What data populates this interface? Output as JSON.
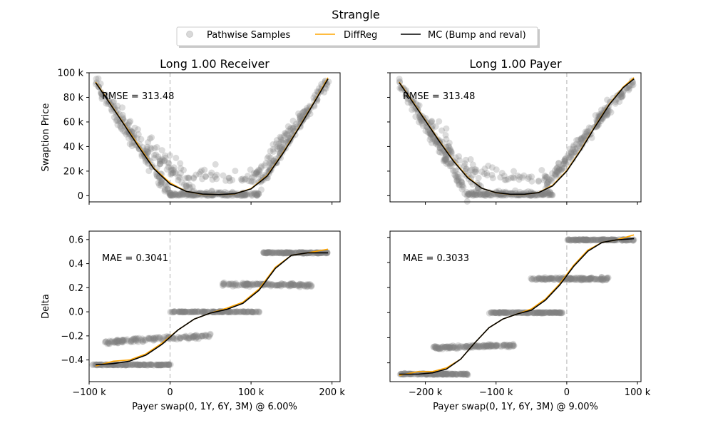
{
  "chart_data": {
    "type": "scatter",
    "title": "Strangle",
    "legend": {
      "placement": "top-center",
      "entries": [
        {
          "name": "Pathwise Samples",
          "kind": "scatter",
          "color": "#808080"
        },
        {
          "name": "DiffReg",
          "kind": "line",
          "color": "#FFA500"
        },
        {
          "name": "MC (Bump and reval)",
          "kind": "line",
          "color": "#000000"
        }
      ]
    },
    "colors": {
      "samples": "#808080",
      "diffreg": "#FFA500",
      "mc": "#000000",
      "strike_line": "#cccccc"
    },
    "panels": [
      {
        "id": "price-receiver",
        "title": "Long 1.00 Receiver",
        "ylabel": "Swaption Price",
        "xlabel": "",
        "xlim": [
          -100000,
          210000
        ],
        "ylim": [
          -5000,
          100000
        ],
        "xticks": [
          -100000,
          0,
          100000,
          200000
        ],
        "xticklabels": [
          "",
          "",
          "",
          ""
        ],
        "yticks": [
          0,
          20000,
          40000,
          60000,
          80000,
          100000
        ],
        "yticklabels": [
          "0",
          "20 k",
          "40 k",
          "60 k",
          "80 k",
          "100 k"
        ],
        "annotation": "RMSE = 313.48",
        "strike_x": 0,
        "mc_curve": {
          "x": [
            -92000,
            -80000,
            -60000,
            -40000,
            -20000,
            0,
            20000,
            40000,
            60000,
            80000,
            100000,
            120000,
            140000,
            160000,
            180000,
            195000
          ],
          "y": [
            92000,
            80500,
            61000,
            41000,
            22000,
            9500,
            3500,
            1300,
            900,
            1600,
            5500,
            16000,
            35000,
            56000,
            78000,
            95000
          ]
        },
        "diffreg_curve": {
          "x": [
            -92000,
            -80000,
            -60000,
            -40000,
            -20000,
            0,
            20000,
            40000,
            60000,
            80000,
            100000,
            120000,
            140000,
            160000,
            180000,
            195000
          ],
          "y": [
            92500,
            81000,
            61500,
            42000,
            22500,
            10500,
            3500,
            1200,
            900,
            1500,
            5800,
            16500,
            35500,
            56500,
            78500,
            96000
          ]
        },
        "sample_clusters": [
          {
            "x": [
              -92000,
              0
            ],
            "y": [
              92000,
              1000
            ],
            "n": 130,
            "spread": 5000
          },
          {
            "x": [
              -70000,
              30000
            ],
            "y": [
              60000,
              0
            ],
            "n": 90,
            "spread": 15000,
            "upper_only": true
          },
          {
            "x": [
              0,
              110000
            ],
            "y": [
              0,
              0
            ],
            "n": 170,
            "spread": 3000,
            "upper_only": true
          },
          {
            "x": [
              0,
              110000
            ],
            "y": [
              15000,
              10000
            ],
            "n": 45,
            "spread": 9000,
            "upper_only": true
          },
          {
            "x": [
              110000,
              195000
            ],
            "y": [
              8000,
              95000
            ],
            "n": 130,
            "spread": 5000
          },
          {
            "x": [
              100000,
              170000
            ],
            "y": [
              10000,
              70000
            ],
            "n": 60,
            "spread": 8000,
            "upper_only": true
          }
        ]
      },
      {
        "id": "price-payer",
        "title": "Long 1.00 Payer",
        "ylabel": "",
        "xlabel": "",
        "xlim": [
          -250000,
          105000
        ],
        "ylim": [
          -5000,
          100000
        ],
        "xticks": [
          -200000,
          -100000,
          0,
          100000
        ],
        "xticklabels": [
          "",
          "",
          "",
          ""
        ],
        "yticks": [
          0,
          20000,
          40000,
          60000,
          80000,
          100000
        ],
        "yticklabels": [
          "",
          "",
          "",
          "",
          "",
          ""
        ],
        "annotation": "RMSE = 313.48",
        "strike_x": 0,
        "mc_curve": {
          "x": [
            -237000,
            -220000,
            -200000,
            -180000,
            -160000,
            -140000,
            -120000,
            -100000,
            -80000,
            -60000,
            -40000,
            -20000,
            0,
            20000,
            40000,
            60000,
            80000,
            95000
          ],
          "y": [
            92000,
            78000,
            61000,
            44000,
            28000,
            14500,
            6000,
            2500,
            1200,
            1200,
            2500,
            8000,
            20000,
            37000,
            56000,
            74000,
            88000,
            95000
          ]
        },
        "diffreg_curve": {
          "x": [
            -237000,
            -220000,
            -200000,
            -180000,
            -160000,
            -140000,
            -120000,
            -100000,
            -80000,
            -60000,
            -40000,
            -20000,
            0,
            20000,
            40000,
            60000,
            80000,
            95000
          ],
          "y": [
            92500,
            78500,
            61500,
            44500,
            28500,
            15000,
            6000,
            2400,
            1100,
            1100,
            2600,
            8500,
            20500,
            37500,
            56500,
            74500,
            88500,
            96000
          ]
        },
        "sample_clusters": [
          {
            "x": [
              -237000,
              -140000
            ],
            "y": [
              92000,
              1000
            ],
            "n": 130,
            "spread": 5000
          },
          {
            "x": [
              -210000,
              -120000
            ],
            "y": [
              60000,
              0
            ],
            "n": 90,
            "spread": 15000,
            "upper_only": true
          },
          {
            "x": [
              -140000,
              -20000
            ],
            "y": [
              0,
              0
            ],
            "n": 170,
            "spread": 3000,
            "upper_only": true
          },
          {
            "x": [
              -140000,
              -20000
            ],
            "y": [
              15000,
              10000
            ],
            "n": 45,
            "spread": 9000,
            "upper_only": true
          },
          {
            "x": [
              -30000,
              95000
            ],
            "y": [
              8000,
              95000
            ],
            "n": 130,
            "spread": 5000
          },
          {
            "x": [
              -20000,
              60000
            ],
            "y": [
              10000,
              70000
            ],
            "n": 60,
            "spread": 8000,
            "upper_only": true
          }
        ]
      },
      {
        "id": "delta-receiver",
        "title": "",
        "ylabel": "Delta",
        "xlabel": "Payer swap(0, 1Y, 6Y, 3M) @ 6.00%",
        "xlim": [
          -100000,
          210000
        ],
        "ylim": [
          -0.58,
          0.67
        ],
        "xticks": [
          -100000,
          0,
          100000,
          200000
        ],
        "xticklabels": [
          "−100 k",
          "0",
          "100 k",
          "200 k"
        ],
        "yticks": [
          -0.4,
          -0.2,
          0.0,
          0.2,
          0.4,
          0.6
        ],
        "yticklabels": [
          "−0.4",
          "−0.2",
          "0.0",
          "0.2",
          "0.4",
          "0.6"
        ],
        "annotation": "MAE = 0.3041",
        "strike_x": 0,
        "mc_curve": {
          "x": [
            -92000,
            -70000,
            -50000,
            -30000,
            -10000,
            10000,
            30000,
            50000,
            70000,
            90000,
            110000,
            130000,
            150000,
            170000,
            195000
          ],
          "y": [
            -0.44,
            -0.43,
            -0.41,
            -0.36,
            -0.27,
            -0.15,
            -0.06,
            -0.01,
            0.02,
            0.07,
            0.18,
            0.36,
            0.47,
            0.49,
            0.49
          ]
        },
        "diffreg_curve": {
          "x": [
            -92000,
            -70000,
            -50000,
            -30000,
            -10000,
            10000,
            30000,
            50000,
            70000,
            90000,
            110000,
            130000,
            150000,
            170000,
            195000
          ],
          "y": [
            -0.45,
            -0.41,
            -0.4,
            -0.35,
            -0.26,
            -0.15,
            -0.06,
            -0.01,
            0.03,
            0.08,
            0.19,
            0.37,
            0.47,
            0.49,
            0.52
          ]
        },
        "sample_clusters": [
          {
            "x": [
              -95000,
              0
            ],
            "y": [
              -0.44,
              -0.44
            ],
            "n": 150,
            "spread": 0.004
          },
          {
            "x": [
              -80000,
              50000
            ],
            "y": [
              -0.25,
              -0.2
            ],
            "n": 150,
            "spread": 0.018
          },
          {
            "x": [
              0,
              110000
            ],
            "y": [
              0.0,
              0.0
            ],
            "n": 150,
            "spread": 0.004
          },
          {
            "x": [
              65000,
              175000
            ],
            "y": [
              0.23,
              0.22
            ],
            "n": 150,
            "spread": 0.012
          },
          {
            "x": [
              115000,
              195000
            ],
            "y": [
              0.49,
              0.49
            ],
            "n": 150,
            "spread": 0.005
          }
        ]
      },
      {
        "id": "delta-payer",
        "title": "",
        "ylabel": "",
        "xlabel": "Payer swap(0, 1Y, 6Y, 3M) @ 9.00%",
        "xlim": [
          -250000,
          105000
        ],
        "ylim": [
          -0.55,
          0.65
        ],
        "xticks": [
          -200000,
          -100000,
          0,
          100000
        ],
        "xticklabels": [
          "−200 k",
          "−100 k",
          "0",
          "100 k"
        ],
        "yticks": [
          -0.4,
          -0.2,
          0.0,
          0.2,
          0.4,
          0.6
        ],
        "yticklabels": [
          "",
          "",
          "",
          "",
          "",
          ""
        ],
        "annotation": "MAE = 0.3033",
        "strike_x": 0,
        "mc_curve": {
          "x": [
            -237000,
            -210000,
            -190000,
            -170000,
            -150000,
            -130000,
            -110000,
            -90000,
            -70000,
            -50000,
            -30000,
            -10000,
            10000,
            30000,
            50000,
            70000,
            95000
          ],
          "y": [
            -0.49,
            -0.49,
            -0.48,
            -0.45,
            -0.37,
            -0.24,
            -0.12,
            -0.05,
            -0.01,
            0.02,
            0.1,
            0.22,
            0.37,
            0.49,
            0.56,
            0.58,
            0.59
          ]
        },
        "diffreg_curve": {
          "x": [
            -237000,
            -210000,
            -190000,
            -170000,
            -150000,
            -130000,
            -110000,
            -90000,
            -70000,
            -50000,
            -30000,
            -10000,
            10000,
            30000,
            50000,
            70000,
            95000
          ],
          "y": [
            -0.5,
            -0.47,
            -0.47,
            -0.44,
            -0.37,
            -0.24,
            -0.12,
            -0.05,
            -0.01,
            0.03,
            0.11,
            0.23,
            0.38,
            0.5,
            0.56,
            0.58,
            0.62
          ]
        },
        "sample_clusters": [
          {
            "x": [
              -238000,
              -140000
            ],
            "y": [
              -0.49,
              -0.49
            ],
            "n": 150,
            "spread": 0.005
          },
          {
            "x": [
              -190000,
              -75000
            ],
            "y": [
              -0.28,
              -0.26
            ],
            "n": 150,
            "spread": 0.012
          },
          {
            "x": [
              -110000,
              -5000
            ],
            "y": [
              0.0,
              0.0
            ],
            "n": 150,
            "spread": 0.004
          },
          {
            "x": [
              -50000,
              60000
            ],
            "y": [
              0.27,
              0.27
            ],
            "n": 150,
            "spread": 0.012
          },
          {
            "x": [
              0,
              95000
            ],
            "y": [
              0.58,
              0.58
            ],
            "n": 150,
            "spread": 0.005
          }
        ]
      }
    ]
  }
}
